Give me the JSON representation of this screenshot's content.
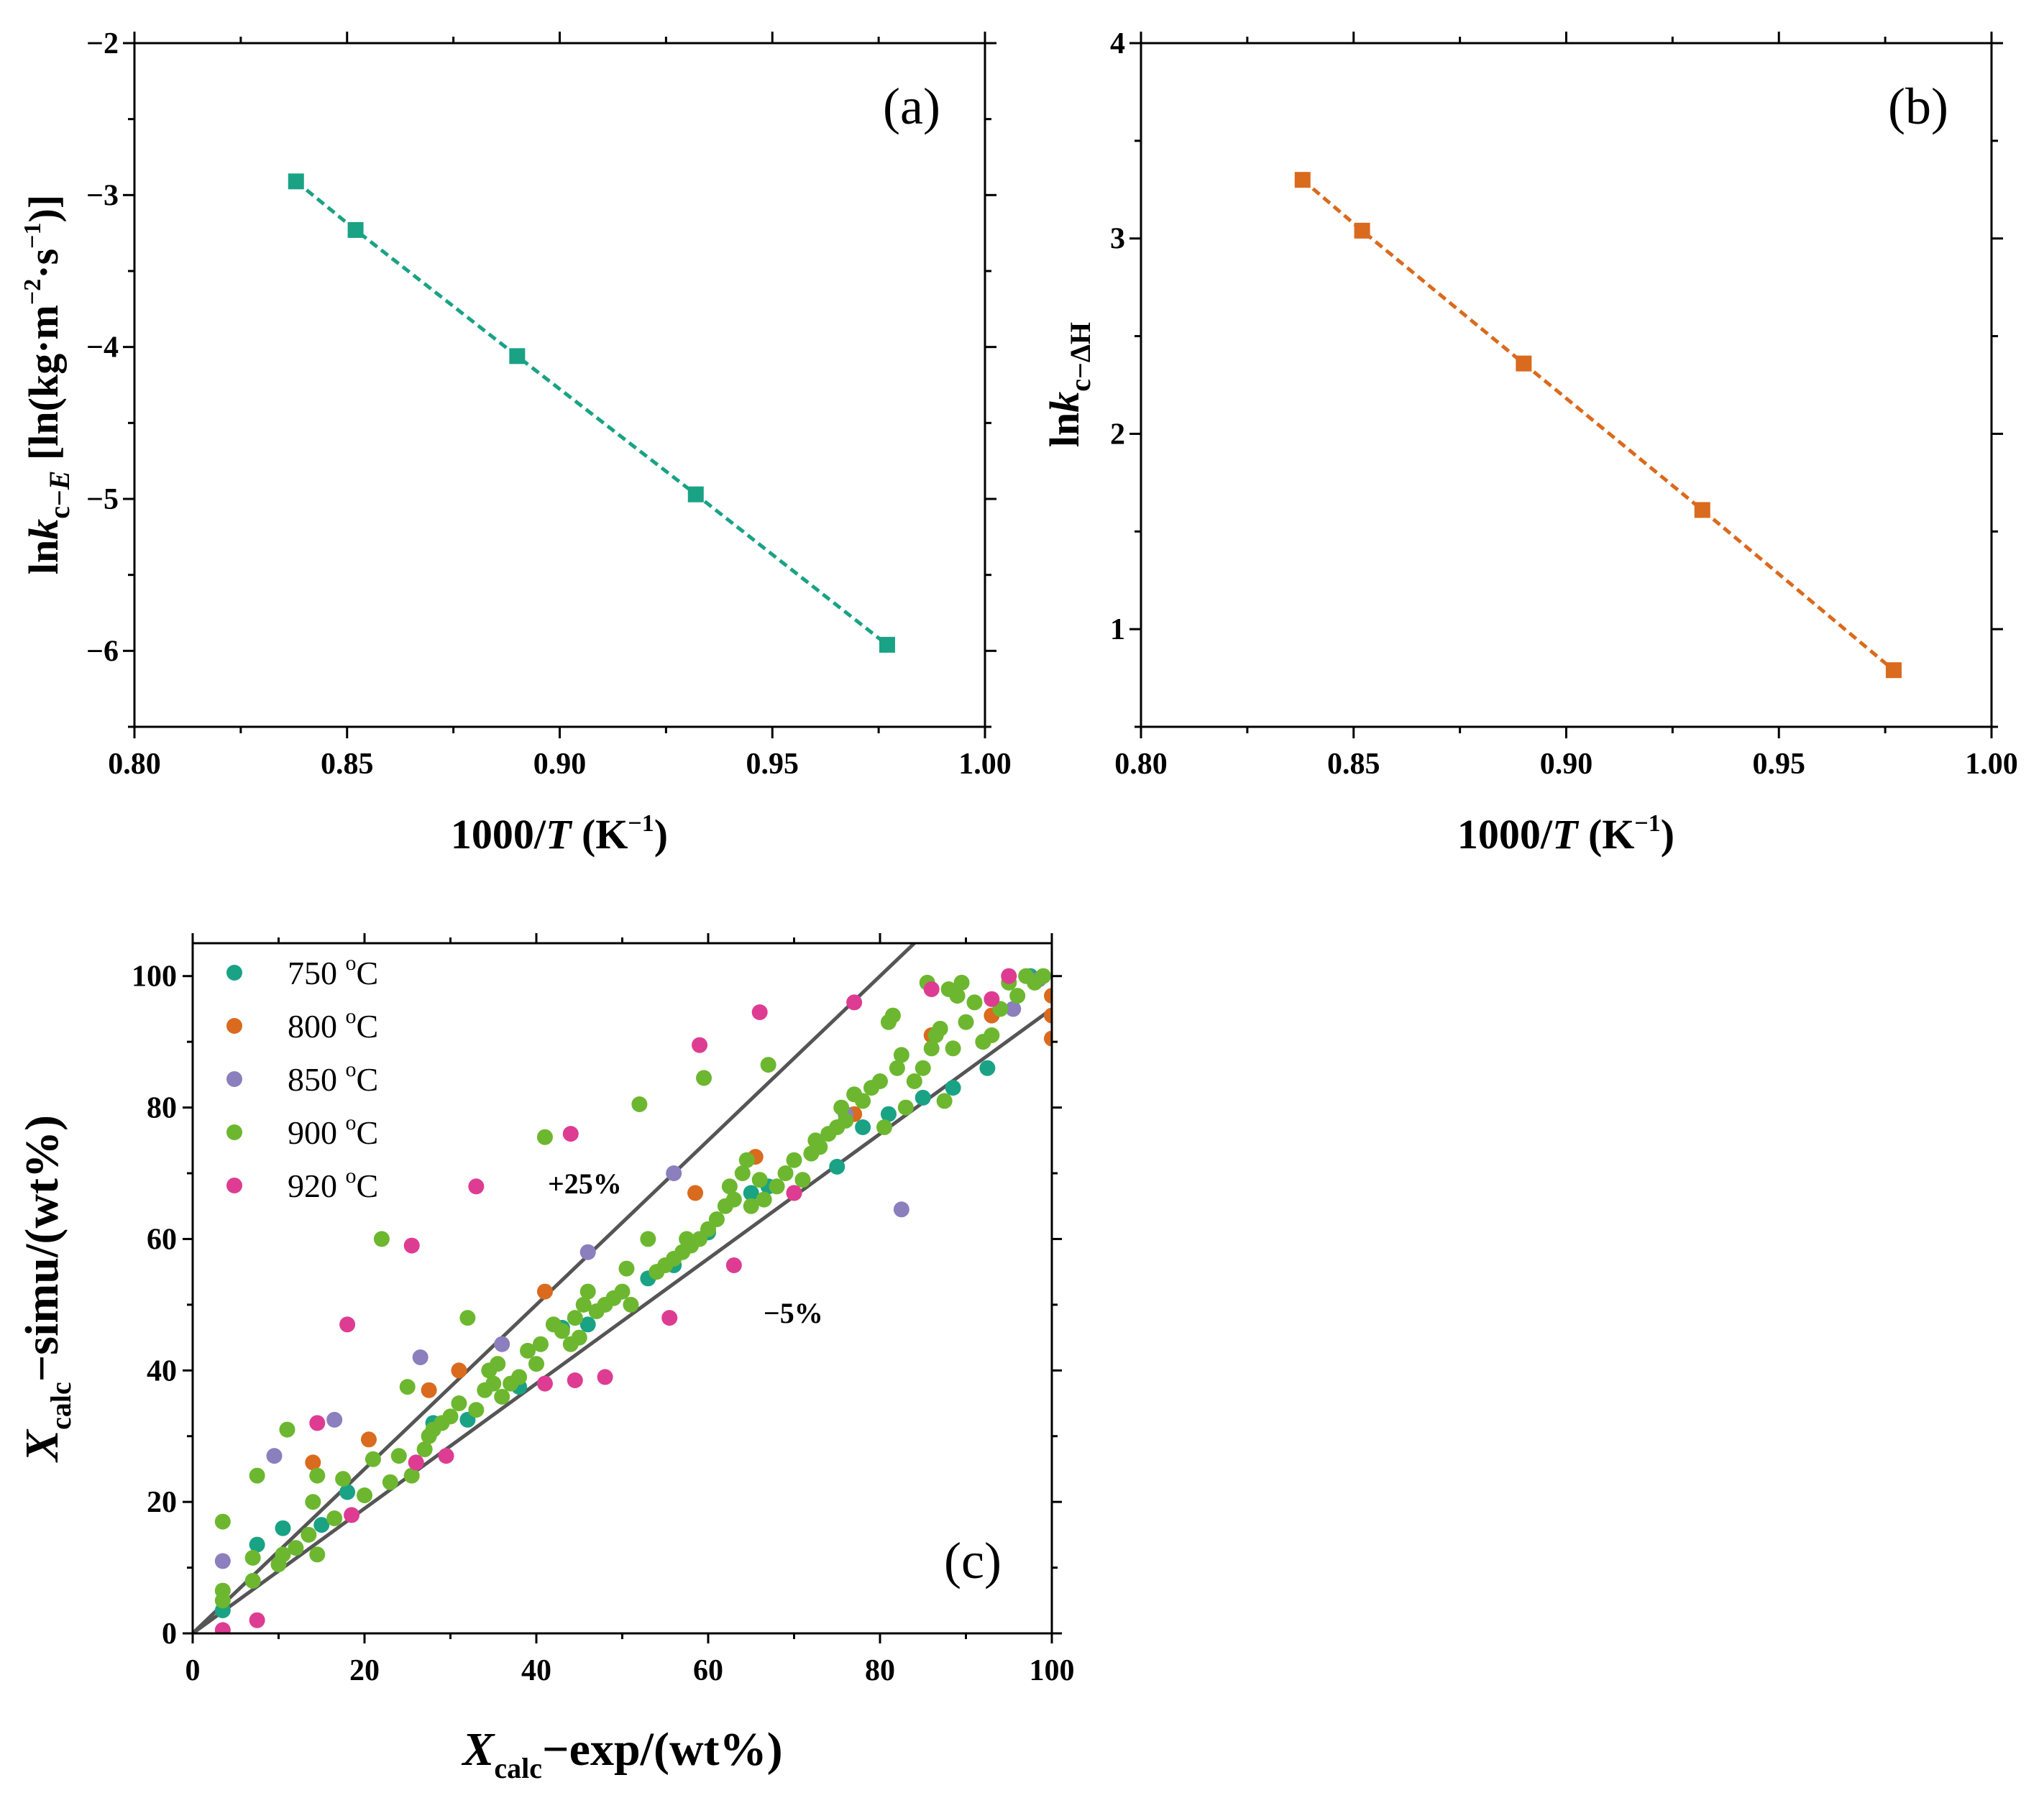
{
  "colors": {
    "series_750": "#1aa285",
    "series_800": "#da6a1d",
    "series_850": "#8b7fbd",
    "series_900": "#6cb72f",
    "series_920": "#de3c92",
    "line_a": "#1aa285",
    "line_b": "#da6a1d",
    "ref_lines": "#555555"
  },
  "chart_data": [
    {
      "panel": "(a)",
      "type": "line",
      "marker": "square",
      "line_style": "dashed",
      "xlabel": {
        "base": "1000/",
        "italic": "T",
        "unit": " (K",
        "sup": "−1",
        "close": ")"
      },
      "ylabel": {
        "pre": "ln",
        "italic": "k",
        "sub": "c−",
        "sub_italic": "E",
        "unit": " [ln(kg·m",
        "sup1": "−2",
        "mid": "·s",
        "sup2": "−1",
        "close": ")]"
      },
      "xlim": [
        0.8,
        1.0
      ],
      "ylim": [
        -6.5,
        -2
      ],
      "xticks": [
        0.8,
        0.85,
        0.9,
        0.95,
        1.0
      ],
      "xtick_labels": [
        "0.80",
        "0.85",
        "0.90",
        "0.95",
        "1.00"
      ],
      "yticks": [
        -6,
        -5,
        -4,
        -3,
        -2
      ],
      "ytick_labels": [
        "−6",
        "−5",
        "−4",
        "−3",
        "−2"
      ],
      "x": [
        0.838,
        0.852,
        0.89,
        0.932,
        0.977
      ],
      "y": [
        -2.91,
        -3.23,
        -4.06,
        -4.97,
        -5.96
      ]
    },
    {
      "panel": "(b)",
      "type": "line",
      "marker": "square",
      "line_style": "dashed",
      "xlabel": {
        "base": "1000/",
        "italic": "T",
        "unit": " (K",
        "sup": "−1",
        "close": ")"
      },
      "ylabel": {
        "pre": "ln",
        "italic": "k",
        "sub": "c−ΔH"
      },
      "xlim": [
        0.8,
        1.0
      ],
      "ylim": [
        0.5,
        4
      ],
      "xticks": [
        0.8,
        0.85,
        0.9,
        0.95,
        1.0
      ],
      "xtick_labels": [
        "0.80",
        "0.85",
        "0.90",
        "0.95",
        "1.00"
      ],
      "yticks": [
        1,
        2,
        3,
        4
      ],
      "ytick_labels": [
        "1",
        "2",
        "3",
        "4"
      ],
      "x": [
        0.838,
        0.852,
        0.89,
        0.932,
        0.977
      ],
      "y": [
        3.3,
        3.04,
        2.36,
        1.61,
        0.79
      ]
    },
    {
      "panel": "(c)",
      "type": "scatter",
      "xlabel": {
        "italic": "X",
        "sub": "calc",
        "rest": "−exp/(wt%)"
      },
      "ylabel": {
        "italic": "X",
        "sub": "calc",
        "rest": "−simu/(wt%)"
      },
      "xlim": [
        0,
        100
      ],
      "ylim": [
        0,
        105
      ],
      "xticks": [
        0,
        20,
        40,
        60,
        80,
        100
      ],
      "xtick_labels": [
        "0",
        "20",
        "40",
        "60",
        "80",
        "100"
      ],
      "yticks": [
        0,
        20,
        40,
        60,
        80,
        100
      ],
      "ytick_labels": [
        "0",
        "20",
        "40",
        "60",
        "80",
        "100"
      ],
      "reference_lines": [
        {
          "label": "+25%",
          "slope": 1.25
        },
        {
          "label": "−5%",
          "slope": 0.95
        }
      ],
      "legend": [
        "750 °C",
        "800 °C",
        "850 °C",
        "900 °C",
        "920 °C"
      ],
      "legend_parts": [
        {
          "num": "750 ",
          "deg": "o",
          "unit": "C"
        },
        {
          "num": "800 ",
          "deg": "o",
          "unit": "C"
        },
        {
          "num": "850 ",
          "deg": "o",
          "unit": "C"
        },
        {
          "num": "900 ",
          "deg": "o",
          "unit": "C"
        },
        {
          "num": "920 ",
          "deg": "o",
          "unit": "C"
        }
      ],
      "series": [
        {
          "name": "750 °C",
          "color_key": "series_750",
          "points": [
            [
              3.5,
              3.5
            ],
            [
              7.5,
              13.5
            ],
            [
              10.5,
              16
            ],
            [
              15,
              16.5
            ],
            [
              18,
              21.5
            ],
            [
              28,
              32
            ],
            [
              32,
              32.5
            ],
            [
              38,
              37.5
            ],
            [
              43,
              46.5
            ],
            [
              46,
              47
            ],
            [
              53,
              54
            ],
            [
              56,
              56
            ],
            [
              60,
              61
            ],
            [
              65,
              67
            ],
            [
              67,
              68
            ],
            [
              75,
              71
            ],
            [
              78,
              77
            ],
            [
              81,
              79
            ],
            [
              85,
              81.5
            ],
            [
              88.5,
              83
            ],
            [
              92.5,
              86
            ],
            [
              97.5,
              100
            ]
          ]
        },
        {
          "name": "800 °C",
          "color_key": "series_800",
          "points": [
            [
              14,
              26
            ],
            [
              20.5,
              29.5
            ],
            [
              27.5,
              37
            ],
            [
              31,
              40
            ],
            [
              41,
              52
            ],
            [
              58.5,
              67
            ],
            [
              65.5,
              72.5
            ],
            [
              70,
              67
            ],
            [
              77,
              79
            ],
            [
              86,
              91
            ],
            [
              93,
              94
            ],
            [
              100,
              97
            ],
            [
              100,
              94
            ],
            [
              100,
              90.5
            ]
          ]
        },
        {
          "name": "850 °C",
          "color_key": "series_850",
          "points": [
            [
              3.5,
              11
            ],
            [
              9.5,
              27
            ],
            [
              16.5,
              32.5
            ],
            [
              26.5,
              42
            ],
            [
              36,
              44
            ],
            [
              46,
              58
            ],
            [
              56,
              70
            ],
            [
              76,
              79
            ],
            [
              82.5,
              64.5
            ],
            [
              92,
              90
            ],
            [
              95.5,
              95
            ],
            [
              98.5,
              99.5
            ]
          ]
        },
        {
          "name": "900 °C",
          "color_key": "series_900",
          "points": [
            [
              3.5,
              5
            ],
            [
              3.5,
              6.5
            ],
            [
              3.5,
              17
            ],
            [
              7,
              8
            ],
            [
              7,
              11.5
            ],
            [
              7.5,
              24
            ],
            [
              10,
              10.5
            ],
            [
              10.5,
              12
            ],
            [
              11,
              31
            ],
            [
              12,
              13
            ],
            [
              13.5,
              15
            ],
            [
              14,
              20
            ],
            [
              14.5,
              12
            ],
            [
              14.5,
              24
            ],
            [
              16.5,
              17.5
            ],
            [
              17.5,
              23.5
            ],
            [
              20,
              21
            ],
            [
              21,
              26.5
            ],
            [
              22,
              60
            ],
            [
              23,
              23
            ],
            [
              24,
              27
            ],
            [
              25,
              37.5
            ],
            [
              25.5,
              24
            ],
            [
              27,
              28
            ],
            [
              27.5,
              30
            ],
            [
              28,
              31
            ],
            [
              29,
              32
            ],
            [
              30,
              33
            ],
            [
              31,
              35
            ],
            [
              32,
              48
            ],
            [
              33,
              34
            ],
            [
              34,
              37
            ],
            [
              34.5,
              40
            ],
            [
              35,
              38
            ],
            [
              35.5,
              41
            ],
            [
              36,
              36
            ],
            [
              37,
              38
            ],
            [
              38,
              39
            ],
            [
              39,
              43
            ],
            [
              40,
              41
            ],
            [
              40.5,
              44
            ],
            [
              41,
              75.5
            ],
            [
              42,
              47
            ],
            [
              43,
              46
            ],
            [
              44,
              44
            ],
            [
              44.5,
              48
            ],
            [
              45,
              45
            ],
            [
              45.5,
              50
            ],
            [
              46,
              52
            ],
            [
              47,
              49
            ],
            [
              48,
              50
            ],
            [
              49,
              51
            ],
            [
              50,
              52
            ],
            [
              50.5,
              55.5
            ],
            [
              51,
              50
            ],
            [
              52,
              80.5
            ],
            [
              53,
              60
            ],
            [
              54,
              55
            ],
            [
              55,
              56
            ],
            [
              56,
              57
            ],
            [
              57,
              58
            ],
            [
              57.5,
              60
            ],
            [
              58,
              59
            ],
            [
              59,
              60
            ],
            [
              59.5,
              84.5
            ],
            [
              60,
              61.5
            ],
            [
              61,
              63
            ],
            [
              62,
              65
            ],
            [
              62.5,
              68
            ],
            [
              63,
              66
            ],
            [
              64,
              70
            ],
            [
              64.5,
              72
            ],
            [
              65,
              65
            ],
            [
              66,
              69
            ],
            [
              66.5,
              66
            ],
            [
              67,
              86.5
            ],
            [
              68,
              68
            ],
            [
              69,
              70
            ],
            [
              70,
              72
            ],
            [
              71,
              69
            ],
            [
              72,
              73
            ],
            [
              72.5,
              75
            ],
            [
              73,
              74
            ],
            [
              74,
              76
            ],
            [
              75,
              77
            ],
            [
              75.5,
              80
            ],
            [
              76,
              78
            ],
            [
              77,
              82
            ],
            [
              78,
              81
            ],
            [
              79,
              83
            ],
            [
              80,
              84
            ],
            [
              80.5,
              77
            ],
            [
              81,
              93
            ],
            [
              81.5,
              94
            ],
            [
              82,
              86
            ],
            [
              82.5,
              88
            ],
            [
              83,
              80
            ],
            [
              84,
              84
            ],
            [
              85,
              86
            ],
            [
              85.5,
              99
            ],
            [
              86,
              89
            ],
            [
              86.5,
              91
            ],
            [
              87,
              92
            ],
            [
              87.5,
              81
            ],
            [
              88,
              98
            ],
            [
              88.5,
              89
            ],
            [
              89,
              97
            ],
            [
              89.5,
              99
            ],
            [
              90,
              93
            ],
            [
              91,
              96
            ],
            [
              92,
              90
            ],
            [
              93,
              91
            ],
            [
              94,
              95
            ],
            [
              95,
              99
            ],
            [
              96,
              97
            ],
            [
              97,
              100
            ],
            [
              98,
              99
            ],
            [
              99,
              100
            ]
          ]
        },
        {
          "name": "920 °C",
          "color_key": "series_920",
          "points": [
            [
              3.5,
              0.5
            ],
            [
              7.5,
              2
            ],
            [
              14.5,
              32
            ],
            [
              18,
              47
            ],
            [
              18.5,
              18
            ],
            [
              25.5,
              59
            ],
            [
              26,
              26
            ],
            [
              29.5,
              27
            ],
            [
              33,
              68
            ],
            [
              41,
              38
            ],
            [
              44,
              76
            ],
            [
              44.5,
              38.5
            ],
            [
              48,
              39
            ],
            [
              55.5,
              48
            ],
            [
              59,
              89.5
            ],
            [
              63,
              56
            ],
            [
              66,
              94.5
            ],
            [
              70,
              67
            ],
            [
              77,
              96
            ],
            [
              86,
              98
            ],
            [
              95,
              100
            ],
            [
              93,
              96.5
            ]
          ]
        }
      ]
    }
  ]
}
